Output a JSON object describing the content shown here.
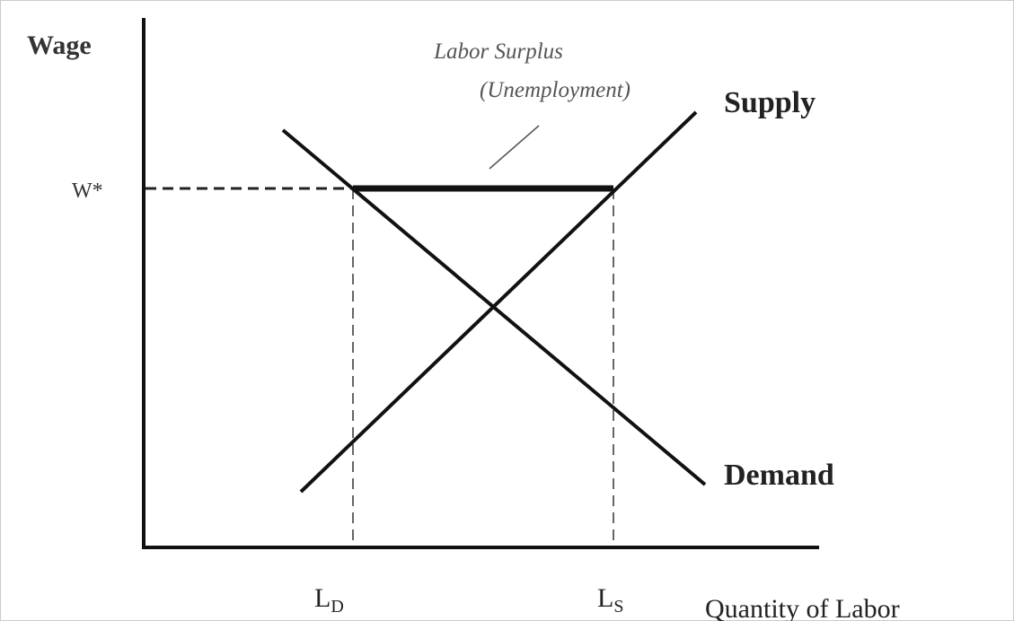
{
  "axes": {
    "y_label": "Wage",
    "x_label": "Quantity of Labor"
  },
  "wage_level": "W*",
  "annotation": {
    "line1": "Labor Surplus",
    "line2": "(Unemployment)"
  },
  "curves": {
    "supply": "Supply",
    "demand": "Demand"
  },
  "quantities": {
    "ld": {
      "main": "L",
      "sub": "D"
    },
    "ls": {
      "main": "L",
      "sub": "S"
    }
  }
}
